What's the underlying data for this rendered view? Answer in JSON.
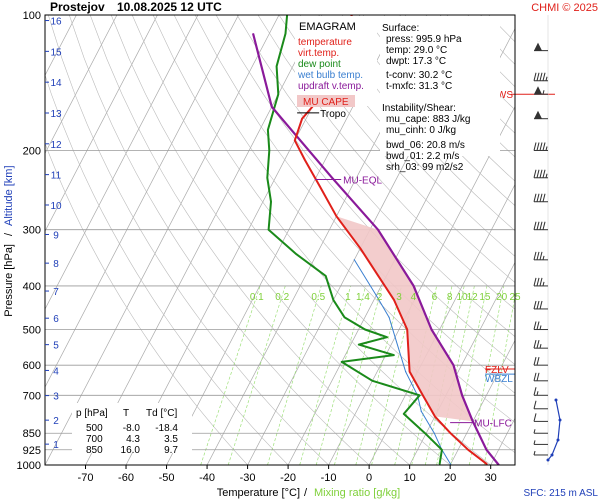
{
  "header": {
    "station": "Prostejov",
    "datetime": "10.08.2025 12 UTC",
    "credit": "CHMI © 2025"
  },
  "legend": {
    "title": "EMAGRAM",
    "items": [
      {
        "label": "temperature",
        "color": "#e0201a"
      },
      {
        "label": "virt.temp.",
        "color": "#e0201a"
      },
      {
        "label": "dew point",
        "color": "#1a8a1a"
      },
      {
        "label": "wet bulb temp.",
        "color": "#3a7fd0"
      },
      {
        "label": "updraft v.temp.",
        "color": "#8a1a9a"
      }
    ],
    "cape_label": "MU CAPE"
  },
  "surface": {
    "title": "Surface:",
    "press": "press: 995.9 hPa",
    "temp": "temp: 29.0 °C",
    "dwpt": "dwpt: 17.3 °C",
    "tconv": "t-conv: 30.2 °C",
    "tmxfc": "t-mxfc: 31.3 °C"
  },
  "instability": {
    "title": "Instability/Shear:",
    "mu_cape": "mu_cape: 883 J/kg",
    "mu_cinh": "mu_cinh: 0 J/kg",
    "bwd_06": "bwd_06: 20.8 m/s",
    "bwd_01": "bwd_01: 2.2 m/s",
    "srh_03": "srh_03: 99 m2/s2"
  },
  "table": {
    "headers": [
      "p [hPa]",
      "T",
      "Td [°C]"
    ],
    "rows": [
      [
        "500",
        "-8.0",
        "-18.4"
      ],
      [
        "700",
        "4.3",
        "3.5"
      ],
      [
        "850",
        "16.0",
        "9.7"
      ]
    ]
  },
  "labels": {
    "tropo": "Tropo",
    "mu_eql": "MU-EQL",
    "mu_lfc": "MU-LFC",
    "fzlv": "FZLV",
    "wbzl": "WBZL",
    "mxws": "MXWS",
    "sfc": "SFC: 215 m ASL"
  },
  "colors": {
    "temperature": "#e0201a",
    "dewpoint": "#1a8a1a",
    "wetbulb": "#3a7fd0",
    "updraft": "#8a1a9a",
    "mixing": "#9ee07a",
    "cape_fill": "#f2c8c8",
    "altitude": "#1f3fb8",
    "grid": "#999999",
    "wind": "#333333"
  },
  "chart_data": {
    "type": "line",
    "x_axis": {
      "label_temp": "Temperature [°C]",
      "label_sep": "/",
      "label_mix": "Mixing ratio [g/kg]",
      "ticks": [
        -70,
        -60,
        -50,
        -40,
        -30,
        -20,
        -10,
        0,
        10,
        20,
        30
      ],
      "xlim": [
        -80,
        36
      ]
    },
    "y_axis": {
      "label_p": "Pressure [hPa]",
      "label_sep": "/",
      "label_alt": "Altitude [km]",
      "scale": "log",
      "ticks": [
        100,
        200,
        300,
        400,
        500,
        600,
        700,
        850,
        925,
        1000
      ],
      "ylim": [
        1000,
        100
      ],
      "altitude_ticks_km": [
        1,
        2,
        3,
        4,
        5,
        6,
        7,
        8,
        9,
        10,
        11,
        12,
        13,
        14,
        15,
        16
      ]
    },
    "mixing_ratio_labels": [
      "0.1",
      "0.2",
      "0.5",
      "1",
      "1.4",
      "2",
      "3",
      "4",
      "6",
      "8",
      "10",
      "12",
      "15",
      "20",
      "25"
    ],
    "series": [
      {
        "key": "temperature",
        "name": "temperature",
        "points": [
          [
            29,
            996
          ],
          [
            22.5,
            925
          ],
          [
            16,
            850
          ],
          [
            10,
            780
          ],
          [
            4.3,
            700
          ],
          [
            -2,
            620
          ],
          [
            -8,
            500
          ],
          [
            -15,
            430
          ],
          [
            -22,
            380
          ],
          [
            -30,
            330
          ],
          [
            -40,
            280
          ],
          [
            -48,
            240
          ],
          [
            -55,
            210
          ],
          [
            -60,
            190
          ],
          [
            -61,
            170
          ],
          [
            -60,
            160
          ],
          [
            -62,
            145
          ],
          [
            -61,
            125
          ],
          [
            -62,
            100
          ]
        ]
      },
      {
        "key": "updraft",
        "name": "updraft v.temp.",
        "points": [
          [
            32,
            1000
          ],
          [
            27,
            925
          ],
          [
            20,
            800
          ],
          [
            14,
            700
          ],
          [
            8,
            600
          ],
          [
            -2,
            500
          ],
          [
            -12,
            400
          ],
          [
            -28,
            300
          ],
          [
            -46,
            230
          ],
          [
            -70,
            160
          ],
          [
            -84,
            110
          ]
        ]
      },
      {
        "key": "dewpoint",
        "name": "dew point",
        "points": [
          [
            17.3,
            996
          ],
          [
            16,
            925
          ],
          [
            9.7,
            850
          ],
          [
            2,
            770
          ],
          [
            3.5,
            700
          ],
          [
            -10,
            650
          ],
          [
            -20,
            590
          ],
          [
            -8,
            570
          ],
          [
            -18,
            540
          ],
          [
            -12,
            520
          ],
          [
            -18.4,
            500
          ],
          [
            -25,
            470
          ],
          [
            -30,
            430
          ],
          [
            -35,
            380
          ],
          [
            -45,
            340
          ],
          [
            -55,
            300
          ],
          [
            -58,
            260
          ],
          [
            -62,
            230
          ],
          [
            -65,
            200
          ],
          [
            -68,
            180
          ],
          [
            -70,
            150
          ],
          [
            -74,
            130
          ],
          [
            -76,
            110
          ],
          [
            -78,
            100
          ]
        ]
      },
      {
        "key": "wetbulb",
        "name": "wet bulb temp.",
        "points": [
          [
            20,
            996
          ],
          [
            16,
            925
          ],
          [
            12,
            850
          ],
          [
            6,
            760
          ],
          [
            3,
            700
          ],
          [
            -3,
            620
          ],
          [
            -10,
            520
          ],
          [
            -14,
            470
          ],
          [
            -20,
            420
          ],
          [
            -30,
            350
          ]
        ]
      }
    ],
    "level_markers": [
      {
        "key": "tropo",
        "label": "Tropo",
        "p": 165,
        "t": -60
      },
      {
        "key": "mu_eql",
        "label": "MU-EQL",
        "p": 232,
        "t": -47
      },
      {
        "key": "mu_lfc",
        "label": "MU-LFC",
        "p": 805,
        "t": 18
      },
      {
        "key": "fzlv",
        "label": "FZLV",
        "p": 612
      },
      {
        "key": "wbzl",
        "label": "WBZL",
        "p": 628
      },
      {
        "key": "mxws",
        "label": "MXWS",
        "p": 150
      }
    ],
    "wind_barbs": [
      {
        "p": 120,
        "kt": 50
      },
      {
        "p": 140,
        "kt": 45
      },
      {
        "p": 150,
        "kt": 55
      },
      {
        "p": 170,
        "kt": 50
      },
      {
        "p": 200,
        "kt": 45
      },
      {
        "p": 230,
        "kt": 45
      },
      {
        "p": 260,
        "kt": 40
      },
      {
        "p": 300,
        "kt": 40
      },
      {
        "p": 350,
        "kt": 35
      },
      {
        "p": 400,
        "kt": 35
      },
      {
        "p": 450,
        "kt": 30
      },
      {
        "p": 500,
        "kt": 25
      },
      {
        "p": 550,
        "kt": 25
      },
      {
        "p": 600,
        "kt": 20
      },
      {
        "p": 650,
        "kt": 20
      },
      {
        "p": 700,
        "kt": 15
      },
      {
        "p": 750,
        "kt": 10
      },
      {
        "p": 800,
        "kt": 10
      },
      {
        "p": 850,
        "kt": 5
      },
      {
        "p": 900,
        "kt": 5
      },
      {
        "p": 950,
        "kt": 5
      }
    ]
  }
}
